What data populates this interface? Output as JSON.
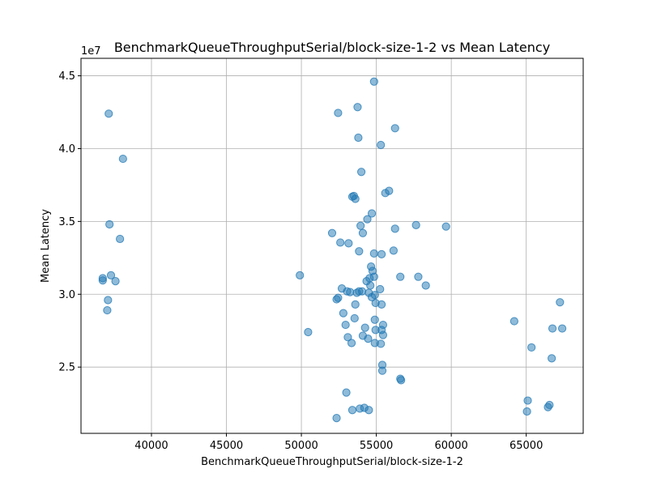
{
  "chart_data": {
    "type": "scatter",
    "title": "BenchmarkQueueThroughputSerial/block-size-1-2 vs Mean Latency",
    "xlabel": "BenchmarkQueueThroughputSerial/block-size-1-2",
    "ylabel": "Mean Latency",
    "y_multiplier": "1e7",
    "xlim": [
      35300,
      68800
    ],
    "ylim": [
      2.045,
      4.62
    ],
    "xticks": [
      40000,
      45000,
      50000,
      55000,
      60000,
      65000
    ],
    "yticks": [
      2.5,
      3.0,
      3.5,
      4.0,
      4.5
    ],
    "xtick_labels": [
      "40000",
      "45000",
      "50000",
      "55000",
      "60000",
      "65000"
    ],
    "ytick_labels": [
      "2.5",
      "3.0",
      "3.5",
      "4.0",
      "4.5"
    ],
    "grid": true,
    "color": "#1f77b4",
    "alpha": 0.5,
    "points": [
      {
        "x": 37150,
        "y": 4.24
      },
      {
        "x": 38100,
        "y": 3.93
      },
      {
        "x": 37200,
        "y": 3.48
      },
      {
        "x": 37900,
        "y": 3.38
      },
      {
        "x": 36750,
        "y": 3.11
      },
      {
        "x": 36750,
        "y": 3.095
      },
      {
        "x": 37300,
        "y": 3.13
      },
      {
        "x": 37600,
        "y": 3.09
      },
      {
        "x": 37100,
        "y": 2.96
      },
      {
        "x": 37050,
        "y": 2.89
      },
      {
        "x": 54850,
        "y": 4.46
      },
      {
        "x": 52450,
        "y": 4.245
      },
      {
        "x": 53750,
        "y": 4.285
      },
      {
        "x": 56250,
        "y": 4.14
      },
      {
        "x": 53800,
        "y": 4.075
      },
      {
        "x": 55300,
        "y": 4.025
      },
      {
        "x": 54000,
        "y": 3.84
      },
      {
        "x": 53400,
        "y": 3.67
      },
      {
        "x": 53500,
        "y": 3.675
      },
      {
        "x": 53600,
        "y": 3.655
      },
      {
        "x": 55600,
        "y": 3.695
      },
      {
        "x": 55850,
        "y": 3.71
      },
      {
        "x": 54700,
        "y": 3.555
      },
      {
        "x": 54400,
        "y": 3.515
      },
      {
        "x": 53950,
        "y": 3.47
      },
      {
        "x": 56250,
        "y": 3.45
      },
      {
        "x": 57650,
        "y": 3.475
      },
      {
        "x": 59650,
        "y": 3.465
      },
      {
        "x": 52050,
        "y": 3.42
      },
      {
        "x": 54100,
        "y": 3.42
      },
      {
        "x": 52600,
        "y": 3.355
      },
      {
        "x": 53150,
        "y": 3.35
      },
      {
        "x": 53850,
        "y": 3.295
      },
      {
        "x": 54850,
        "y": 3.28
      },
      {
        "x": 55350,
        "y": 3.275
      },
      {
        "x": 56150,
        "y": 3.3
      },
      {
        "x": 54650,
        "y": 3.19
      },
      {
        "x": 54750,
        "y": 3.16
      },
      {
        "x": 54550,
        "y": 3.11
      },
      {
        "x": 54850,
        "y": 3.12
      },
      {
        "x": 54350,
        "y": 3.09
      },
      {
        "x": 56600,
        "y": 3.12
      },
      {
        "x": 57800,
        "y": 3.12
      },
      {
        "x": 58300,
        "y": 3.06
      },
      {
        "x": 49900,
        "y": 3.13
      },
      {
        "x": 52700,
        "y": 3.04
      },
      {
        "x": 53050,
        "y": 3.02
      },
      {
        "x": 53250,
        "y": 3.015
      },
      {
        "x": 53700,
        "y": 3.01
      },
      {
        "x": 53850,
        "y": 3.02
      },
      {
        "x": 54050,
        "y": 3.02
      },
      {
        "x": 54600,
        "y": 3.06
      },
      {
        "x": 54500,
        "y": 3.01
      },
      {
        "x": 54700,
        "y": 2.98
      },
      {
        "x": 55250,
        "y": 3.035
      },
      {
        "x": 54900,
        "y": 2.995
      },
      {
        "x": 52350,
        "y": 2.965
      },
      {
        "x": 52450,
        "y": 2.975
      },
      {
        "x": 53600,
        "y": 2.93
      },
      {
        "x": 54950,
        "y": 2.94
      },
      {
        "x": 55350,
        "y": 2.93
      },
      {
        "x": 52800,
        "y": 2.87
      },
      {
        "x": 53550,
        "y": 2.835
      },
      {
        "x": 54900,
        "y": 2.825
      },
      {
        "x": 52950,
        "y": 2.79
      },
      {
        "x": 54250,
        "y": 2.77
      },
      {
        "x": 54950,
        "y": 2.755
      },
      {
        "x": 55450,
        "y": 2.79
      },
      {
        "x": 55350,
        "y": 2.755
      },
      {
        "x": 55450,
        "y": 2.72
      },
      {
        "x": 54100,
        "y": 2.715
      },
      {
        "x": 53100,
        "y": 2.705
      },
      {
        "x": 54450,
        "y": 2.695
      },
      {
        "x": 53350,
        "y": 2.665
      },
      {
        "x": 54900,
        "y": 2.665
      },
      {
        "x": 55300,
        "y": 2.66
      },
      {
        "x": 50450,
        "y": 2.74
      },
      {
        "x": 55400,
        "y": 2.515
      },
      {
        "x": 55400,
        "y": 2.475
      },
      {
        "x": 56600,
        "y": 2.42
      },
      {
        "x": 56650,
        "y": 2.41
      },
      {
        "x": 53000,
        "y": 2.325
      },
      {
        "x": 53400,
        "y": 2.205
      },
      {
        "x": 53900,
        "y": 2.215
      },
      {
        "x": 54200,
        "y": 2.22
      },
      {
        "x": 54500,
        "y": 2.205
      },
      {
        "x": 52350,
        "y": 2.15
      },
      {
        "x": 64200,
        "y": 2.815
      },
      {
        "x": 67250,
        "y": 2.945
      },
      {
        "x": 66750,
        "y": 2.765
      },
      {
        "x": 67400,
        "y": 2.765
      },
      {
        "x": 65350,
        "y": 2.635
      },
      {
        "x": 66700,
        "y": 2.56
      },
      {
        "x": 65100,
        "y": 2.27
      },
      {
        "x": 66550,
        "y": 2.24
      },
      {
        "x": 66450,
        "y": 2.225
      },
      {
        "x": 65050,
        "y": 2.195
      }
    ]
  }
}
